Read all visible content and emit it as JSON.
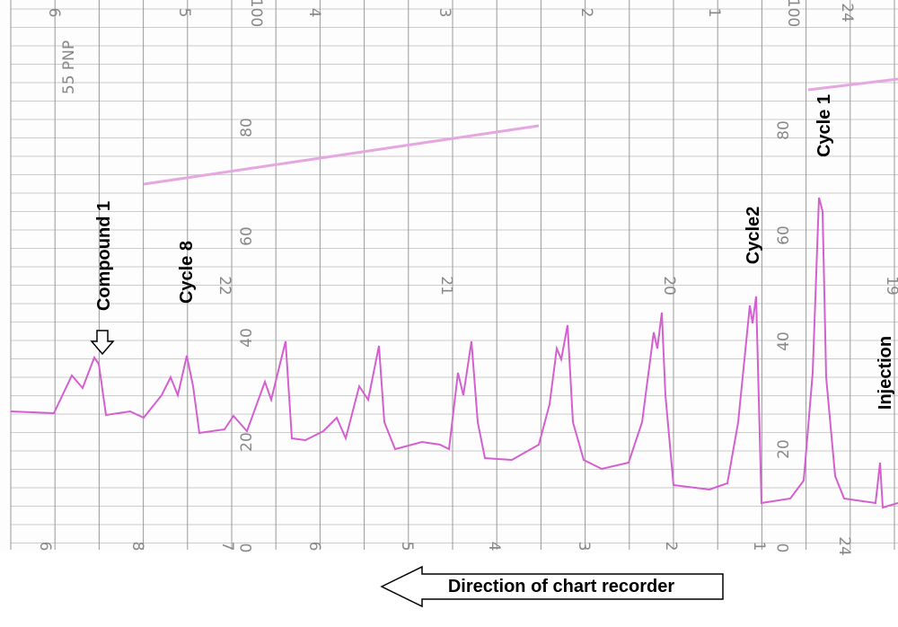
{
  "paper": {
    "top_scale": [
      "6",
      "5",
      "100",
      "4",
      "3",
      "2",
      "1",
      "100",
      "24"
    ],
    "note": "55 PNP",
    "left_scale": [
      "80",
      "60",
      "40",
      "20",
      "0"
    ],
    "right_scale": [
      "80",
      "60",
      "40",
      "20",
      "0"
    ],
    "time_marks": [
      "22",
      "21",
      "20",
      "19"
    ],
    "bottom_scale": [
      "6",
      "8",
      "7",
      "6",
      "5",
      "4",
      "3",
      "2",
      "1",
      "24"
    ]
  },
  "annotations": {
    "compound_1": "Compound 1",
    "cycle_8": "Cycle 8",
    "cycle_2": "Cycle2",
    "cycle_1": "Cycle 1",
    "injection": "Injection",
    "direction": "Direction of chart recorder"
  }
}
